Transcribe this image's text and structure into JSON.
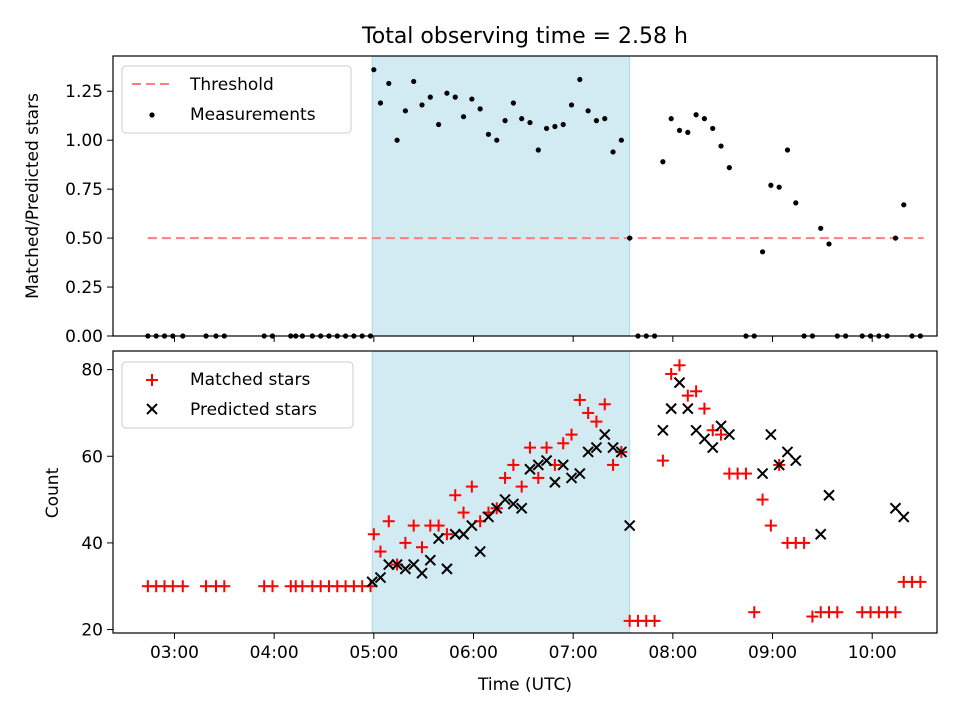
{
  "chart_data": [
    {
      "type": "scatter",
      "title": "Total observing time = 2.58 h",
      "ylabel": "Matched/Predicted stars",
      "xlabel": "",
      "ylim": [
        0,
        1.43
      ],
      "yticks": [
        "0.00",
        "0.25",
        "0.50",
        "0.75",
        "1.00",
        "1.25"
      ],
      "ytick_values": [
        0,
        0.25,
        0.5,
        0.75,
        1.0,
        1.25
      ],
      "shaded_span": [
        "04:59",
        "07:34"
      ],
      "shade_color": "#add8e6",
      "legend_position": "upper left",
      "threshold": {
        "name": "Threshold",
        "y": 0.5,
        "x_start": "02:44",
        "x_end": "10:31",
        "color": "#ff7f7f"
      },
      "series": [
        {
          "name": "Measurements",
          "color": "#000000",
          "marker": "dot",
          "points": [
            [
              "02:44",
              0
            ],
            [
              "02:49",
              0
            ],
            [
              "02:54",
              0
            ],
            [
              "02:59",
              0
            ],
            [
              "03:05",
              0
            ],
            [
              "03:19",
              0
            ],
            [
              "03:25",
              0
            ],
            [
              "03:30",
              0
            ],
            [
              "03:54",
              0
            ],
            [
              "03:59",
              0
            ],
            [
              "04:10",
              0
            ],
            [
              "04:13",
              0
            ],
            [
              "04:17",
              0
            ],
            [
              "04:23",
              0
            ],
            [
              "04:28",
              0
            ],
            [
              "04:33",
              0
            ],
            [
              "04:38",
              0
            ],
            [
              "04:43",
              0
            ],
            [
              "04:48",
              0
            ],
            [
              "04:53",
              0
            ],
            [
              "04:58",
              0
            ],
            [
              "05:00",
              1.36
            ],
            [
              "05:04",
              1.19
            ],
            [
              "05:09",
              1.29
            ],
            [
              "05:14",
              1.0
            ],
            [
              "05:19",
              1.15
            ],
            [
              "05:24",
              1.3
            ],
            [
              "05:29",
              1.18
            ],
            [
              "05:34",
              1.22
            ],
            [
              "05:39",
              1.08
            ],
            [
              "05:44",
              1.24
            ],
            [
              "05:49",
              1.22
            ],
            [
              "05:54",
              1.12
            ],
            [
              "05:59",
              1.21
            ],
            [
              "06:04",
              1.16
            ],
            [
              "06:09",
              1.03
            ],
            [
              "06:14",
              1.0
            ],
            [
              "06:19",
              1.1
            ],
            [
              "06:24",
              1.19
            ],
            [
              "06:29",
              1.11
            ],
            [
              "06:34",
              1.09
            ],
            [
              "06:39",
              0.95
            ],
            [
              "06:44",
              1.06
            ],
            [
              "06:49",
              1.07
            ],
            [
              "06:54",
              1.08
            ],
            [
              "06:59",
              1.18
            ],
            [
              "07:04",
              1.31
            ],
            [
              "07:09",
              1.15
            ],
            [
              "07:14",
              1.1
            ],
            [
              "07:19",
              1.11
            ],
            [
              "07:24",
              0.94
            ],
            [
              "07:29",
              1.0
            ],
            [
              "07:34",
              0.5
            ],
            [
              "07:39",
              0
            ],
            [
              "07:44",
              0
            ],
            [
              "07:49",
              0
            ],
            [
              "07:54",
              0.89
            ],
            [
              "07:59",
              1.11
            ],
            [
              "08:04",
              1.05
            ],
            [
              "08:09",
              1.04
            ],
            [
              "08:14",
              1.13
            ],
            [
              "08:19",
              1.11
            ],
            [
              "08:24",
              1.06
            ],
            [
              "08:29",
              0.97
            ],
            [
              "08:34",
              0.86
            ],
            [
              "08:44",
              0
            ],
            [
              "08:49",
              0
            ],
            [
              "08:54",
              0.43
            ],
            [
              "08:59",
              0.77
            ],
            [
              "09:04",
              0.76
            ],
            [
              "09:09",
              0.95
            ],
            [
              "09:14",
              0.68
            ],
            [
              "09:19",
              0
            ],
            [
              "09:24",
              0
            ],
            [
              "09:29",
              0.55
            ],
            [
              "09:34",
              0.47
            ],
            [
              "09:39",
              0
            ],
            [
              "09:44",
              0
            ],
            [
              "09:54",
              0
            ],
            [
              "09:59",
              0
            ],
            [
              "10:04",
              0
            ],
            [
              "10:09",
              0
            ],
            [
              "10:14",
              0.5
            ],
            [
              "10:19",
              0.67
            ],
            [
              "10:24",
              0
            ],
            [
              "10:29",
              0
            ]
          ]
        }
      ]
    },
    {
      "type": "scatter",
      "title": "",
      "xlabel": "Time (UTC)",
      "ylabel": "Count",
      "ylim": [
        19.2,
        84.3
      ],
      "yticks": [
        "20",
        "40",
        "60",
        "80"
      ],
      "ytick_values": [
        20,
        40,
        60,
        80
      ],
      "xlim": [
        "02:23",
        "10:39"
      ],
      "xticks": [
        "03:00",
        "04:00",
        "05:00",
        "06:00",
        "07:00",
        "08:00",
        "09:00",
        "10:00"
      ],
      "shaded_span": [
        "04:59",
        "07:34"
      ],
      "shade_color": "#add8e6",
      "legend_position": "upper left",
      "series": [
        {
          "name": "Matched stars",
          "color": "#ff0000",
          "marker": "plus",
          "points": [
            [
              "02:44",
              30
            ],
            [
              "02:49",
              30
            ],
            [
              "02:54",
              30
            ],
            [
              "02:59",
              30
            ],
            [
              "03:05",
              30
            ],
            [
              "03:19",
              30
            ],
            [
              "03:25",
              30
            ],
            [
              "03:30",
              30
            ],
            [
              "03:54",
              30
            ],
            [
              "03:59",
              30
            ],
            [
              "04:10",
              30
            ],
            [
              "04:13",
              30
            ],
            [
              "04:17",
              30
            ],
            [
              "04:23",
              30
            ],
            [
              "04:28",
              30
            ],
            [
              "04:33",
              30
            ],
            [
              "04:38",
              30
            ],
            [
              "04:43",
              30
            ],
            [
              "04:48",
              30
            ],
            [
              "04:53",
              30
            ],
            [
              "04:58",
              30
            ],
            [
              "05:00",
              42
            ],
            [
              "05:04",
              38
            ],
            [
              "05:09",
              45
            ],
            [
              "05:14",
              35
            ],
            [
              "05:19",
              40
            ],
            [
              "05:24",
              44
            ],
            [
              "05:29",
              39
            ],
            [
              "05:34",
              44
            ],
            [
              "05:39",
              44
            ],
            [
              "05:44",
              42
            ],
            [
              "05:49",
              51
            ],
            [
              "05:54",
              47
            ],
            [
              "05:59",
              53
            ],
            [
              "06:04",
              45
            ],
            [
              "06:09",
              47
            ],
            [
              "06:14",
              48
            ],
            [
              "06:19",
              55
            ],
            [
              "06:24",
              58
            ],
            [
              "06:29",
              53
            ],
            [
              "06:34",
              62
            ],
            [
              "06:39",
              55
            ],
            [
              "06:44",
              62
            ],
            [
              "06:49",
              58
            ],
            [
              "06:54",
              63
            ],
            [
              "06:59",
              65
            ],
            [
              "07:04",
              73
            ],
            [
              "07:09",
              70
            ],
            [
              "07:14",
              68
            ],
            [
              "07:19",
              72
            ],
            [
              "07:24",
              58
            ],
            [
              "07:29",
              61
            ],
            [
              "07:34",
              22
            ],
            [
              "07:39",
              22
            ],
            [
              "07:44",
              22
            ],
            [
              "07:49",
              22
            ],
            [
              "07:54",
              59
            ],
            [
              "07:59",
              79
            ],
            [
              "08:04",
              81
            ],
            [
              "08:09",
              74
            ],
            [
              "08:14",
              75
            ],
            [
              "08:19",
              71
            ],
            [
              "08:24",
              66
            ],
            [
              "08:29",
              65
            ],
            [
              "08:34",
              56
            ],
            [
              "08:39",
              56
            ],
            [
              "08:44",
              56
            ],
            [
              "08:49",
              24
            ],
            [
              "08:54",
              50
            ],
            [
              "08:59",
              44
            ],
            [
              "09:04",
              58
            ],
            [
              "09:09",
              40
            ],
            [
              "09:14",
              40
            ],
            [
              "09:19",
              40
            ],
            [
              "09:24",
              23
            ],
            [
              "09:29",
              24
            ],
            [
              "09:34",
              24
            ],
            [
              "09:39",
              24
            ],
            [
              "09:54",
              24
            ],
            [
              "09:59",
              24
            ],
            [
              "10:04",
              24
            ],
            [
              "10:09",
              24
            ],
            [
              "10:14",
              24
            ],
            [
              "10:19",
              31
            ],
            [
              "10:24",
              31
            ],
            [
              "10:29",
              31
            ]
          ]
        },
        {
          "name": "Predicted stars",
          "color": "#000000",
          "marker": "x",
          "points": [
            [
              "04:59",
              31
            ],
            [
              "05:04",
              32
            ],
            [
              "05:09",
              35
            ],
            [
              "05:14",
              35
            ],
            [
              "05:19",
              34
            ],
            [
              "05:24",
              35
            ],
            [
              "05:29",
              33
            ],
            [
              "05:34",
              36
            ],
            [
              "05:39",
              41
            ],
            [
              "05:44",
              34
            ],
            [
              "05:49",
              42
            ],
            [
              "05:54",
              42
            ],
            [
              "05:59",
              44
            ],
            [
              "06:04",
              38
            ],
            [
              "06:09",
              46
            ],
            [
              "06:14",
              48
            ],
            [
              "06:19",
              50
            ],
            [
              "06:24",
              49
            ],
            [
              "06:29",
              48
            ],
            [
              "06:34",
              57
            ],
            [
              "06:39",
              58
            ],
            [
              "06:44",
              59
            ],
            [
              "06:49",
              54
            ],
            [
              "06:54",
              58
            ],
            [
              "06:59",
              55
            ],
            [
              "07:04",
              56
            ],
            [
              "07:09",
              61
            ],
            [
              "07:14",
              62
            ],
            [
              "07:19",
              65
            ],
            [
              "07:24",
              62
            ],
            [
              "07:29",
              61
            ],
            [
              "07:34",
              44
            ],
            [
              "07:54",
              66
            ],
            [
              "07:59",
              71
            ],
            [
              "08:04",
              77
            ],
            [
              "08:09",
              71
            ],
            [
              "08:14",
              66
            ],
            [
              "08:19",
              64
            ],
            [
              "08:24",
              62
            ],
            [
              "08:29",
              67
            ],
            [
              "08:34",
              65
            ],
            [
              "08:54",
              56
            ],
            [
              "08:59",
              65
            ],
            [
              "09:04",
              58
            ],
            [
              "09:09",
              61
            ],
            [
              "09:14",
              59
            ],
            [
              "09:29",
              42
            ],
            [
              "09:34",
              51
            ],
            [
              "10:14",
              48
            ],
            [
              "10:19",
              46
            ]
          ]
        }
      ]
    }
  ]
}
